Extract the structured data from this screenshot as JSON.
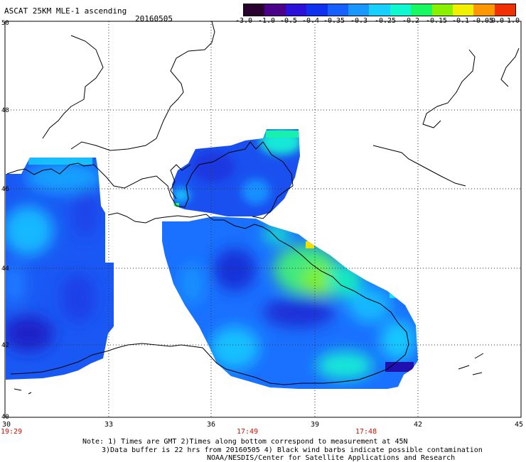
{
  "title": "ASCAT 25KM MLE-1 ascending",
  "date": "20160505",
  "colorbar": {
    "labels": [
      "-3.0",
      "-1.0",
      "-0.5",
      "-0.4",
      "-0.35",
      "-0.3",
      "-0.25",
      "-0.2",
      "-0.15",
      "-0.1",
      "-0.05",
      "0.0",
      "1.0"
    ],
    "colors": [
      "#2a0030",
      "#4a0088",
      "#2a10d8",
      "#1030f0",
      "#1560ff",
      "#1898ff",
      "#18d0ff",
      "#10f8d0",
      "#18f860",
      "#88f000",
      "#f0f000",
      "#ff9800",
      "#f03000"
    ]
  },
  "lat_labels": [
    "50",
    "48",
    "46",
    "44",
    "42",
    "40"
  ],
  "lon_labels": [
    "30",
    "33",
    "36",
    "39",
    "42",
    "45"
  ],
  "times": [
    "19:29",
    "17:49",
    "17:48"
  ],
  "notes": {
    "line1": "Note: 1) Times are GMT 2)Times along bottom correspond to measurement at 45N",
    "line2": "3)Data buffer is 22 hrs from 20160505 4) Black wind barbs indicate possible contamination",
    "line3": "NOAA/NESDIS/Center for Satellite Applications and Research"
  },
  "colors": {
    "time_label": "#d01000",
    "swath_base": "#1560ff"
  }
}
